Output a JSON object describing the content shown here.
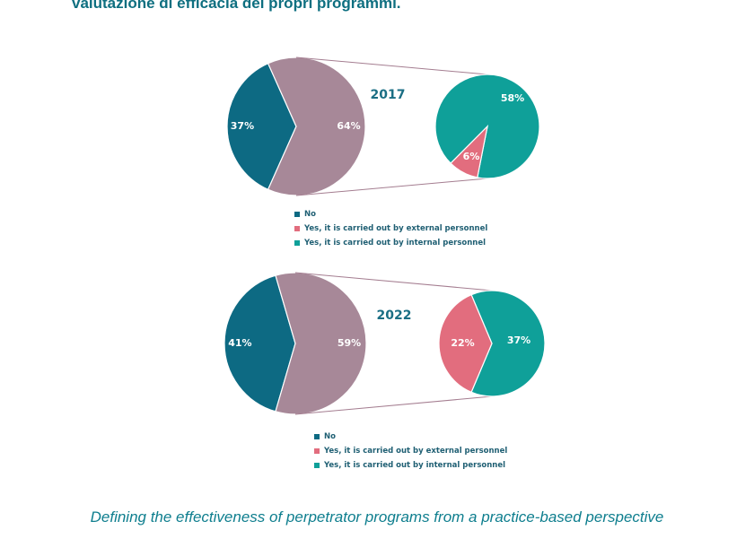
{
  "page": {
    "heading": "valutazione di efficacia dei propri programmi.",
    "caption": "Defining the effectiveness of perpetrator programs from a practice-based perspective"
  },
  "colors": {
    "no": "#0d6a83",
    "yes_total": "#a78898",
    "external": "#e26d7e",
    "internal": "#0fa099",
    "connector": "#a47d90",
    "year_text": "#1a6e84"
  },
  "chart_data": [
    {
      "type": "pie",
      "title": "2017",
      "main_pie": [
        {
          "label": "No",
          "value": 37,
          "display": "37%"
        },
        {
          "label": "Yes",
          "value": 64,
          "display": "64%"
        }
      ],
      "breakout_pie": [
        {
          "label": "Yes, it is carried out by internal personnel",
          "value": 58,
          "display": "58%"
        },
        {
          "label": "Yes, it is carried out by external personnel",
          "value": 6,
          "display": "6%"
        }
      ],
      "legend": [
        {
          "label": "No",
          "color": "#0d6a83"
        },
        {
          "label": "Yes, it is carried out by external personnel",
          "color": "#e26d7e"
        },
        {
          "label": "Yes, it is carried out by internal personnel",
          "color": "#0fa099"
        }
      ]
    },
    {
      "type": "pie",
      "title": "2022",
      "main_pie": [
        {
          "label": "No",
          "value": 41,
          "display": "41%"
        },
        {
          "label": "Yes",
          "value": 59,
          "display": "59%"
        }
      ],
      "breakout_pie": [
        {
          "label": "Yes, it is carried out by internal personnel",
          "value": 37,
          "display": "37%"
        },
        {
          "label": "Yes, it is carried out by external personnel",
          "value": 22,
          "display": "22%"
        }
      ],
      "legend": [
        {
          "label": "No",
          "color": "#0d6a83"
        },
        {
          "label": "Yes, it is carried out by external personnel",
          "color": "#e26d7e"
        },
        {
          "label": "Yes, it is carried out by internal personnel",
          "color": "#0fa099"
        }
      ]
    }
  ]
}
